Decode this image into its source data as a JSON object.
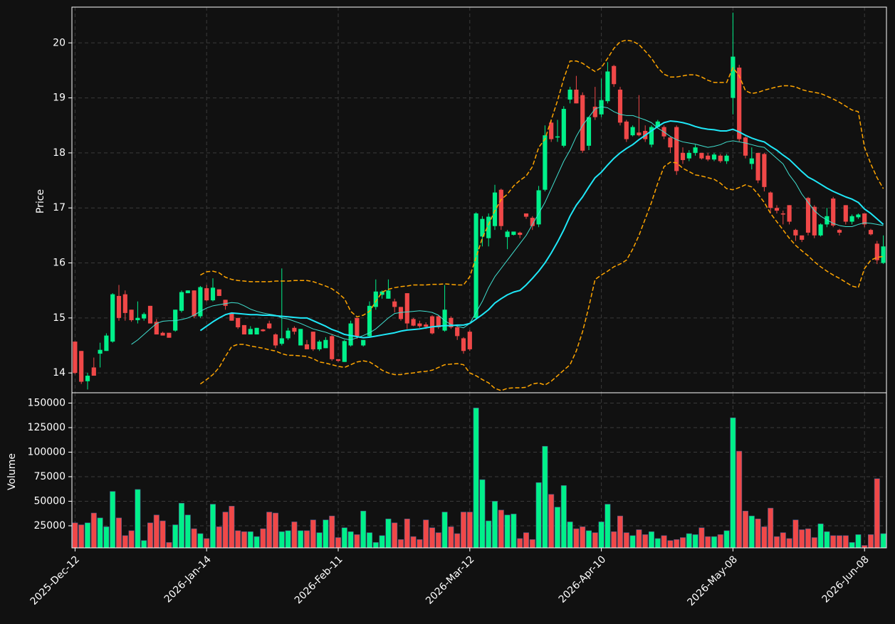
{
  "chart_data": {
    "type": "candlestick",
    "categories": [
      "2025-Dec-12",
      null,
      null,
      null,
      null,
      null,
      null,
      null,
      null,
      null,
      null,
      null,
      null,
      null,
      null,
      null,
      null,
      null,
      null,
      null,
      null,
      "2026-Jan-14",
      null,
      null,
      null,
      null,
      null,
      null,
      null,
      null,
      null,
      null,
      null,
      null,
      null,
      null,
      null,
      null,
      null,
      null,
      null,
      null,
      "2026-Feb-11",
      null,
      null,
      null,
      null,
      null,
      null,
      null,
      null,
      null,
      null,
      null,
      null,
      null,
      null,
      null,
      null,
      null,
      null,
      null,
      null,
      "2026-Mar-12",
      null,
      null,
      null,
      null,
      null,
      null,
      null,
      null,
      null,
      null,
      null,
      null,
      null,
      null,
      null,
      null,
      null,
      null,
      null,
      null,
      "2026-Apr-10",
      null,
      null,
      null,
      null,
      null,
      null,
      null,
      null,
      null,
      null,
      null,
      null,
      null,
      null,
      null,
      null,
      null,
      null,
      null,
      null,
      "2026-May-08",
      null,
      null,
      null,
      null,
      null,
      null,
      null,
      null,
      null,
      null,
      null,
      null,
      null,
      null,
      null,
      null,
      null,
      null,
      null,
      null,
      "2026-Jun-08",
      null,
      null,
      null
    ],
    "open": [
      14.57,
      14.4,
      13.85,
      14.1,
      14.35,
      14.4,
      14.57,
      15.4,
      15.43,
      15.15,
      14.96,
      14.99,
      15.22,
      14.93,
      14.73,
      14.73,
      14.77,
      15.13,
      15.45,
      15.5,
      15.03,
      15.54,
      15.32,
      15.52,
      15.33,
      15.08,
      15.0,
      14.87,
      14.7,
      14.7,
      14.79,
      14.9,
      14.7,
      14.53,
      14.63,
      14.82,
      14.5,
      14.52,
      14.75,
      14.43,
      14.45,
      14.67,
      14.25,
      14.2,
      14.5,
      15.0,
      14.5,
      14.67,
      15.2,
      15.42,
      15.35,
      15.3,
      15.2,
      15.45,
      14.98,
      14.9,
      14.88,
      15.03,
      15.03,
      14.77,
      15.0,
      14.83,
      14.63,
      14.75,
      15.0,
      16.48,
      16.45,
      16.67,
      17.33,
      16.47,
      16.51,
      16.55,
      16.9,
      16.82,
      16.7,
      17.33,
      18.55,
      18.28,
      18.13,
      18.97,
      19.15,
      19.05,
      18.13,
      18.84,
      18.7,
      18.94,
      19.58,
      19.15,
      18.57,
      18.32,
      18.37,
      18.4,
      18.15,
      18.47,
      18.47,
      18.28,
      18.47,
      18.0,
      17.9,
      18.0,
      18.0,
      17.95,
      17.88,
      17.95,
      17.85,
      19.0,
      19.55,
      18.28,
      17.8,
      18.0,
      17.98,
      17.28,
      17.0,
      16.9,
      17.05,
      16.6,
      16.5,
      17.18,
      17.02,
      16.5,
      16.7,
      17.17,
      16.6,
      17.05,
      16.75,
      16.83,
      16.9,
      16.6,
      16.35,
      16.0
    ],
    "high": [
      14.57,
      14.4,
      14.0,
      14.28,
      14.55,
      14.72,
      15.45,
      15.6,
      15.5,
      15.15,
      15.3,
      15.1,
      15.22,
      14.98,
      14.75,
      14.73,
      15.15,
      15.5,
      15.5,
      15.5,
      15.58,
      15.6,
      15.72,
      15.52,
      15.33,
      15.08,
      15.0,
      14.87,
      14.85,
      14.82,
      14.8,
      14.95,
      14.72,
      15.9,
      14.82,
      14.85,
      14.8,
      14.6,
      14.75,
      14.6,
      14.65,
      14.7,
      14.25,
      14.6,
      14.95,
      15.0,
      14.6,
      15.3,
      15.7,
      15.5,
      15.7,
      15.35,
      15.2,
      15.45,
      15.0,
      14.95,
      14.92,
      15.05,
      15.05,
      15.6,
      15.03,
      14.85,
      14.65,
      14.78,
      16.92,
      16.85,
      16.9,
      17.42,
      17.35,
      16.6,
      16.57,
      16.57,
      16.9,
      16.85,
      17.4,
      18.5,
      18.6,
      18.6,
      18.85,
      19.2,
      19.4,
      19.1,
      18.65,
      19.2,
      19.35,
      19.65,
      19.6,
      19.2,
      18.6,
      18.5,
      19.05,
      18.5,
      18.5,
      18.6,
      18.5,
      18.3,
      18.5,
      18.1,
      18.05,
      18.15,
      18.0,
      18.0,
      18.0,
      17.98,
      17.98,
      20.55,
      19.6,
      18.3,
      18.1,
      18.0,
      18.0,
      17.3,
      17.05,
      16.95,
      17.05,
      16.62,
      16.5,
      17.2,
      17.05,
      16.72,
      17.0,
      17.2,
      16.62,
      17.05,
      16.88,
      16.9,
      16.9,
      16.62,
      16.4,
      16.5
    ],
    "low": [
      13.98,
      13.8,
      13.7,
      13.95,
      14.1,
      14.4,
      14.55,
      14.95,
      14.95,
      14.93,
      14.9,
      14.95,
      14.9,
      14.7,
      14.68,
      14.64,
      14.75,
      15.1,
      15.45,
      15.0,
      15.0,
      15.3,
      15.3,
      15.4,
      15.15,
      14.95,
      14.8,
      14.7,
      14.7,
      14.7,
      14.75,
      14.8,
      14.45,
      14.5,
      14.6,
      14.7,
      14.5,
      14.43,
      14.4,
      14.4,
      14.45,
      14.22,
      14.2,
      14.2,
      14.48,
      14.62,
      14.48,
      14.65,
      15.15,
      15.35,
      15.35,
      15.1,
      14.95,
      14.8,
      14.85,
      14.82,
      14.8,
      14.7,
      14.8,
      14.75,
      14.8,
      14.6,
      14.35,
      14.4,
      14.98,
      16.3,
      16.3,
      16.6,
      16.6,
      16.25,
      16.5,
      16.45,
      16.8,
      16.6,
      16.65,
      17.3,
      18.2,
      18.2,
      18.1,
      18.9,
      18.9,
      18.0,
      18.05,
      18.6,
      18.65,
      18.9,
      19.2,
      18.5,
      18.2,
      18.3,
      18.3,
      18.2,
      18.1,
      18.45,
      18.25,
      18.0,
      17.6,
      17.8,
      17.85,
      17.95,
      17.88,
      17.85,
      17.85,
      17.82,
      17.8,
      18.7,
      18.2,
      17.9,
      17.7,
      17.45,
      17.3,
      16.9,
      16.9,
      16.7,
      16.7,
      16.4,
      16.38,
      16.5,
      16.45,
      16.48,
      16.65,
      16.65,
      16.5,
      16.7,
      16.7,
      16.8,
      16.65,
      16.5,
      15.98,
      15.98
    ],
    "close": [
      14.0,
      13.84,
      13.95,
      13.95,
      14.42,
      14.68,
      15.43,
      15.0,
      15.09,
      14.96,
      15.0,
      15.07,
      14.9,
      14.7,
      14.68,
      14.64,
      15.15,
      15.47,
      15.5,
      15.03,
      15.56,
      15.32,
      15.55,
      15.4,
      15.22,
      14.95,
      14.83,
      14.7,
      14.8,
      14.82,
      14.76,
      14.81,
      14.5,
      14.63,
      14.77,
      14.75,
      14.8,
      14.43,
      14.43,
      14.57,
      14.6,
      14.25,
      14.22,
      14.58,
      14.9,
      14.67,
      14.6,
      15.22,
      15.48,
      15.48,
      15.5,
      15.2,
      14.98,
      14.9,
      14.86,
      14.85,
      14.84,
      14.72,
      14.83,
      15.15,
      14.83,
      14.67,
      14.4,
      14.43,
      16.9,
      16.8,
      16.84,
      17.28,
      16.67,
      16.57,
      16.57,
      16.51,
      16.84,
      16.67,
      17.32,
      18.32,
      18.25,
      18.3,
      18.8,
      19.15,
      18.9,
      18.04,
      18.65,
      18.65,
      18.96,
      19.48,
      19.25,
      18.55,
      18.25,
      18.47,
      18.32,
      18.25,
      18.47,
      18.57,
      18.3,
      18.1,
      17.67,
      17.87,
      18.0,
      18.1,
      17.9,
      17.88,
      17.97,
      17.85,
      17.95,
      19.75,
      18.25,
      17.95,
      17.9,
      17.5,
      17.38,
      17.0,
      16.95,
      16.88,
      16.75,
      16.5,
      16.42,
      16.55,
      16.5,
      16.7,
      16.85,
      16.68,
      16.55,
      16.75,
      16.85,
      16.88,
      16.7,
      16.52,
      16.05,
      16.3
    ],
    "up_color": "#00f08a",
    "down_color": "#f04848",
    "ylabel": "Price",
    "ylim": [
      13.64,
      20.65
    ],
    "yticks": [
      14,
      15,
      16,
      17,
      18,
      19,
      20
    ],
    "grid": true,
    "lines": [
      {
        "color": "#40e0d0",
        "width": 1,
        "dashed": false,
        "values": [
          null,
          null,
          null,
          null,
          null,
          null,
          null,
          null,
          null,
          14.52,
          14.6,
          14.7,
          14.8,
          14.9,
          14.94,
          14.95,
          14.95,
          14.97,
          15.0,
          15.05,
          15.12,
          15.18,
          15.22,
          15.24,
          15.26,
          15.28,
          15.27,
          15.22,
          15.16,
          15.12,
          15.09,
          15.07,
          15.05,
          15.0,
          14.98,
          14.94,
          14.9,
          14.85,
          14.8,
          14.77,
          14.74,
          14.7,
          14.66,
          14.62,
          14.6,
          14.64,
          14.68,
          14.73,
          14.8,
          14.9,
          15.0,
          15.08,
          15.1,
          15.11,
          15.12,
          15.13,
          15.12,
          15.1,
          15.05,
          14.95,
          14.88,
          14.85,
          14.82,
          14.9,
          15.1,
          15.3,
          15.55,
          15.75,
          15.9,
          16.05,
          16.2,
          16.35,
          16.5,
          16.7,
          16.9,
          17.1,
          17.35,
          17.6,
          17.85,
          18.05,
          18.3,
          18.5,
          18.65,
          18.8,
          18.84,
          18.82,
          18.75,
          18.7,
          18.68,
          18.68,
          18.64,
          18.6,
          18.55,
          18.45,
          18.38,
          18.3,
          18.24,
          18.2,
          18.18,
          18.16,
          18.13,
          18.1,
          18.12,
          18.15,
          18.2,
          18.22,
          18.2,
          18.18,
          18.15,
          18.12,
          18.1,
          18.0,
          17.9,
          17.8,
          17.6,
          17.45,
          17.25,
          17.1,
          16.95,
          16.85,
          16.78,
          16.72,
          16.68,
          16.66,
          16.66,
          16.7,
          16.73,
          16.72,
          16.7,
          16.68
        ]
      },
      {
        "color": "#1fe8f8",
        "width": 2,
        "dashed": false,
        "values": [
          null,
          null,
          null,
          null,
          null,
          null,
          null,
          null,
          null,
          null,
          null,
          null,
          null,
          null,
          null,
          null,
          null,
          null,
          null,
          null,
          14.77,
          14.85,
          14.93,
          15.0,
          15.06,
          15.09,
          15.08,
          15.07,
          15.06,
          15.06,
          15.05,
          15.05,
          15.04,
          15.03,
          15.02,
          15.01,
          15.0,
          15.0,
          14.95,
          14.9,
          14.85,
          14.79,
          14.75,
          14.7,
          14.68,
          14.66,
          14.64,
          14.65,
          14.67,
          14.69,
          14.71,
          14.73,
          14.76,
          14.78,
          14.79,
          14.8,
          14.82,
          14.84,
          14.85,
          14.86,
          14.86,
          14.87,
          14.87,
          14.9,
          14.98,
          15.06,
          15.15,
          15.27,
          15.35,
          15.42,
          15.47,
          15.5,
          15.6,
          15.72,
          15.85,
          16.0,
          16.18,
          16.38,
          16.6,
          16.85,
          17.05,
          17.2,
          17.38,
          17.55,
          17.65,
          17.78,
          17.9,
          18.0,
          18.08,
          18.15,
          18.24,
          18.32,
          18.4,
          18.48,
          18.55,
          18.58,
          18.57,
          18.55,
          18.52,
          18.48,
          18.45,
          18.43,
          18.42,
          18.4,
          18.4,
          18.43,
          18.38,
          18.32,
          18.27,
          18.23,
          18.2,
          18.12,
          18.05,
          17.96,
          17.88,
          17.77,
          17.66,
          17.56,
          17.5,
          17.43,
          17.36,
          17.3,
          17.25,
          17.2,
          17.16,
          17.1,
          16.98,
          16.9,
          16.8,
          16.7
        ]
      },
      {
        "color": "#ffa500",
        "width": 1.5,
        "dashed": true,
        "values": [
          null,
          null,
          null,
          null,
          null,
          null,
          null,
          null,
          null,
          null,
          null,
          null,
          null,
          null,
          null,
          null,
          null,
          null,
          null,
          null,
          15.78,
          15.84,
          15.85,
          15.82,
          15.74,
          15.7,
          15.68,
          15.67,
          15.66,
          15.66,
          15.66,
          15.66,
          15.67,
          15.67,
          15.67,
          15.68,
          15.68,
          15.68,
          15.66,
          15.62,
          15.58,
          15.53,
          15.45,
          15.35,
          15.12,
          15.02,
          15.05,
          15.12,
          15.3,
          15.47,
          15.52,
          15.55,
          15.57,
          15.58,
          15.6,
          15.6,
          15.6,
          15.61,
          15.61,
          15.62,
          15.61,
          15.6,
          15.6,
          15.75,
          16.1,
          16.45,
          16.7,
          16.95,
          17.15,
          17.25,
          17.4,
          17.5,
          17.58,
          17.75,
          18.1,
          18.25,
          18.6,
          18.95,
          19.35,
          19.67,
          19.67,
          19.63,
          19.55,
          19.48,
          19.55,
          19.72,
          19.9,
          20.02,
          20.05,
          20.03,
          19.97,
          19.85,
          19.72,
          19.55,
          19.43,
          19.38,
          19.38,
          19.4,
          19.42,
          19.42,
          19.38,
          19.32,
          19.28,
          19.28,
          19.28,
          19.55,
          19.4,
          19.13,
          19.08,
          19.1,
          19.14,
          19.17,
          19.2,
          19.22,
          19.22,
          19.2,
          19.15,
          19.12,
          19.1,
          19.08,
          19.03,
          18.98,
          18.92,
          18.85,
          18.78,
          18.75,
          18.1,
          17.8,
          17.55,
          17.35
        ]
      },
      {
        "color": "#ffa500",
        "width": 1.5,
        "dashed": true,
        "values": [
          null,
          null,
          null,
          null,
          null,
          null,
          null,
          null,
          null,
          null,
          null,
          null,
          null,
          null,
          null,
          null,
          null,
          null,
          null,
          null,
          13.8,
          13.88,
          13.97,
          14.1,
          14.3,
          14.48,
          14.52,
          14.52,
          14.49,
          14.47,
          14.45,
          14.42,
          14.4,
          14.35,
          14.32,
          14.32,
          14.31,
          14.3,
          14.26,
          14.2,
          14.18,
          14.15,
          14.12,
          14.1,
          14.15,
          14.2,
          14.22,
          14.2,
          14.13,
          14.05,
          14.0,
          13.97,
          13.97,
          13.99,
          14.0,
          14.02,
          14.03,
          14.05,
          14.1,
          14.15,
          14.16,
          14.17,
          14.15,
          14.0,
          13.95,
          13.88,
          13.82,
          13.72,
          13.68,
          13.72,
          13.73,
          13.73,
          13.74,
          13.8,
          13.82,
          13.78,
          13.85,
          13.95,
          14.05,
          14.15,
          14.4,
          14.75,
          15.2,
          15.7,
          15.78,
          15.85,
          15.93,
          15.98,
          16.05,
          16.25,
          16.5,
          16.8,
          17.1,
          17.45,
          17.75,
          17.83,
          17.82,
          17.72,
          17.66,
          17.6,
          17.58,
          17.55,
          17.52,
          17.45,
          17.35,
          17.33,
          17.37,
          17.42,
          17.38,
          17.25,
          17.1,
          16.9,
          16.75,
          16.6,
          16.45,
          16.32,
          16.22,
          16.13,
          16.02,
          15.93,
          15.85,
          15.78,
          15.72,
          15.65,
          15.58,
          15.55,
          15.9,
          16.05,
          16.1,
          16.12
        ]
      }
    ],
    "volume": {
      "ylabel": "Volume",
      "values": [
        28000,
        26000,
        28000,
        38000,
        33000,
        24000,
        60000,
        33000,
        15000,
        20000,
        62000,
        10000,
        28000,
        36000,
        30000,
        8000,
        26000,
        48000,
        36000,
        22000,
        17000,
        12000,
        47000,
        24000,
        39000,
        45000,
        20000,
        19000,
        19000,
        14000,
        22000,
        39000,
        38000,
        19000,
        20000,
        29000,
        20000,
        20000,
        31000,
        18000,
        31000,
        35000,
        13000,
        23000,
        19000,
        16000,
        40000,
        18000,
        8000,
        15000,
        32000,
        28000,
        11000,
        32000,
        14000,
        11000,
        31000,
        23000,
        18000,
        39000,
        24000,
        17000,
        39000,
        39000,
        145000,
        72000,
        30000,
        50000,
        41000,
        36000,
        37000,
        12000,
        18000,
        11000,
        69000,
        106000,
        57000,
        44000,
        66000,
        29000,
        22000,
        24000,
        20000,
        18000,
        29000,
        47000,
        19000,
        35000,
        18000,
        15000,
        21000,
        16000,
        19000,
        12000,
        15000,
        10000,
        11000,
        13000,
        17000,
        16000,
        23000,
        14000,
        14000,
        16000,
        20000,
        135000,
        101000,
        40000,
        35000,
        32000,
        24000,
        43000,
        14000,
        18000,
        12000,
        31000,
        21000,
        22000,
        13000,
        27000,
        19000,
        15000,
        15000,
        15000,
        8000,
        16000,
        5000,
        16000,
        73000,
        17000
      ],
      "ylim": [
        2500,
        160500
      ],
      "yticks": [
        25000,
        50000,
        75000,
        100000,
        125000,
        150000
      ]
    }
  }
}
